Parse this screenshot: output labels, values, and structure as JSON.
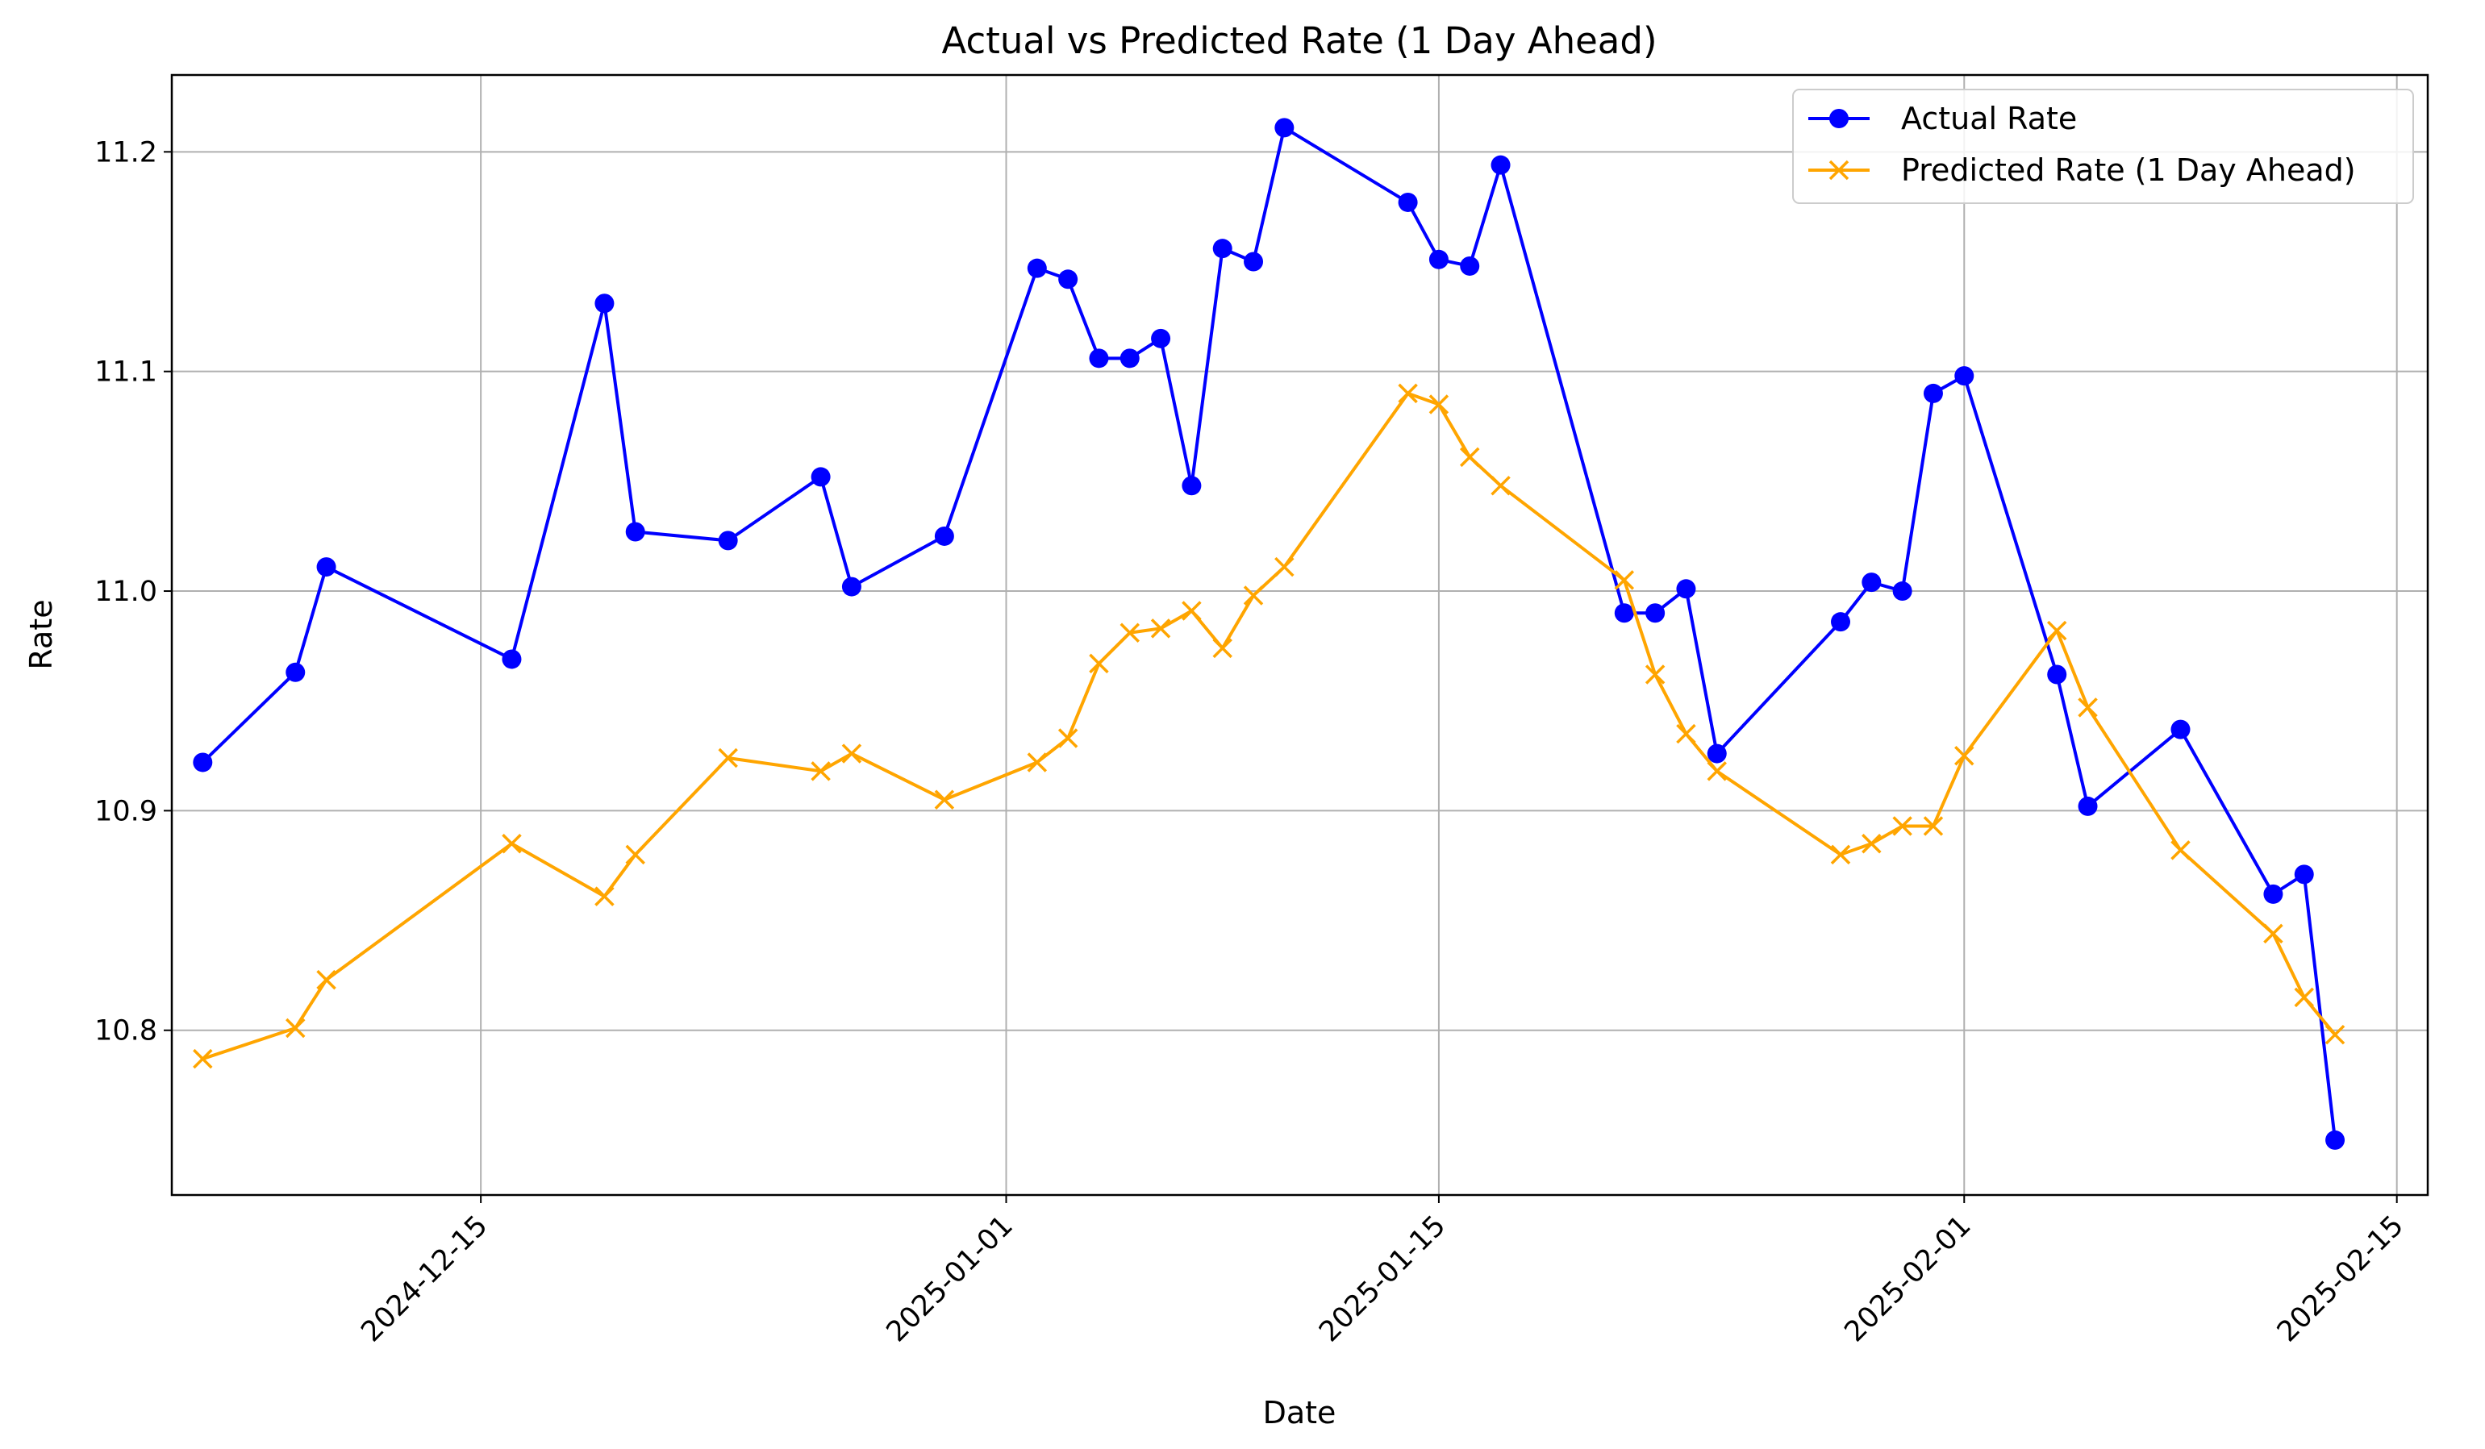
{
  "chart_data": {
    "type": "line",
    "title": "Actual vs Predicted Rate (1 Day Ahead)",
    "xlabel": "Date",
    "ylabel": "Rate",
    "x_axis_type": "date",
    "xlim": [
      "2024-12-05",
      "2025-02-16"
    ],
    "ylim": [
      10.725,
      11.235
    ],
    "x_ticks": [
      "2024-12-15",
      "2025-01-01",
      "2025-01-15",
      "2025-02-01",
      "2025-02-15"
    ],
    "y_ticks": [
      10.8,
      10.9,
      11.0,
      11.1,
      11.2
    ],
    "y_tick_labels": [
      "10.8",
      "10.9",
      "11.0",
      "11.1",
      "11.2"
    ],
    "grid": true,
    "legend_position": "top-right",
    "series": [
      {
        "name": "Actual Rate",
        "color": "#0000ff",
        "marker": "circle",
        "points": [
          [
            "2024-12-06",
            10.922
          ],
          [
            "2024-12-09",
            10.963
          ],
          [
            "2024-12-10",
            11.011
          ],
          [
            "2024-12-16",
            10.969
          ],
          [
            "2024-12-19",
            11.131
          ],
          [
            "2024-12-20",
            11.027
          ],
          [
            "2024-12-23",
            11.023
          ],
          [
            "2024-12-26",
            11.052
          ],
          [
            "2024-12-27",
            11.002
          ],
          [
            "2024-12-30",
            11.025
          ],
          [
            "2025-01-02",
            11.147
          ],
          [
            "2025-01-03",
            11.142
          ],
          [
            "2025-01-04",
            11.106
          ],
          [
            "2025-01-05",
            11.106
          ],
          [
            "2025-01-06",
            11.115
          ],
          [
            "2025-01-07",
            11.048
          ],
          [
            "2025-01-08",
            11.156
          ],
          [
            "2025-01-09",
            11.15
          ],
          [
            "2025-01-10",
            11.211
          ],
          [
            "2025-01-14",
            11.177
          ],
          [
            "2025-01-15",
            11.151
          ],
          [
            "2025-01-16",
            11.148
          ],
          [
            "2025-01-17",
            11.194
          ],
          [
            "2025-01-21",
            10.99
          ],
          [
            "2025-01-22",
            10.99
          ],
          [
            "2025-01-23",
            11.001
          ],
          [
            "2025-01-24",
            10.926
          ],
          [
            "2025-01-28",
            10.986
          ],
          [
            "2025-01-29",
            11.004
          ],
          [
            "2025-01-30",
            11.0
          ],
          [
            "2025-01-31",
            11.09
          ],
          [
            "2025-02-01",
            11.098
          ],
          [
            "2025-02-04",
            10.962
          ],
          [
            "2025-02-05",
            10.902
          ],
          [
            "2025-02-08",
            10.937
          ],
          [
            "2025-02-11",
            10.862
          ],
          [
            "2025-02-12",
            10.871
          ],
          [
            "2025-02-13",
            10.75
          ]
        ]
      },
      {
        "name": "Predicted Rate (1 Day Ahead)",
        "color": "#ffa500",
        "marker": "x",
        "points": [
          [
            "2024-12-06",
            10.787
          ],
          [
            "2024-12-09",
            10.801
          ],
          [
            "2024-12-10",
            10.823
          ],
          [
            "2024-12-16",
            10.885
          ],
          [
            "2024-12-19",
            10.861
          ],
          [
            "2024-12-20",
            10.88
          ],
          [
            "2024-12-23",
            10.924
          ],
          [
            "2024-12-26",
            10.918
          ],
          [
            "2024-12-27",
            10.926
          ],
          [
            "2024-12-30",
            10.905
          ],
          [
            "2025-01-02",
            10.922
          ],
          [
            "2025-01-03",
            10.933
          ],
          [
            "2025-01-04",
            10.967
          ],
          [
            "2025-01-05",
            10.981
          ],
          [
            "2025-01-06",
            10.983
          ],
          [
            "2025-01-07",
            10.991
          ],
          [
            "2025-01-08",
            10.974
          ],
          [
            "2025-01-09",
            10.998
          ],
          [
            "2025-01-10",
            11.011
          ],
          [
            "2025-01-14",
            11.09
          ],
          [
            "2025-01-15",
            11.085
          ],
          [
            "2025-01-16",
            11.061
          ],
          [
            "2025-01-17",
            11.048
          ],
          [
            "2025-01-21",
            11.005
          ],
          [
            "2025-01-22",
            10.962
          ],
          [
            "2025-01-23",
            10.935
          ],
          [
            "2025-01-24",
            10.918
          ],
          [
            "2025-01-28",
            10.88
          ],
          [
            "2025-01-29",
            10.885
          ],
          [
            "2025-01-30",
            10.893
          ],
          [
            "2025-01-31",
            10.893
          ],
          [
            "2025-02-01",
            10.925
          ],
          [
            "2025-02-04",
            10.982
          ],
          [
            "2025-02-05",
            10.947
          ],
          [
            "2025-02-08",
            10.882
          ],
          [
            "2025-02-11",
            10.844
          ],
          [
            "2025-02-12",
            10.815
          ],
          [
            "2025-02-13",
            10.798
          ]
        ]
      }
    ]
  }
}
